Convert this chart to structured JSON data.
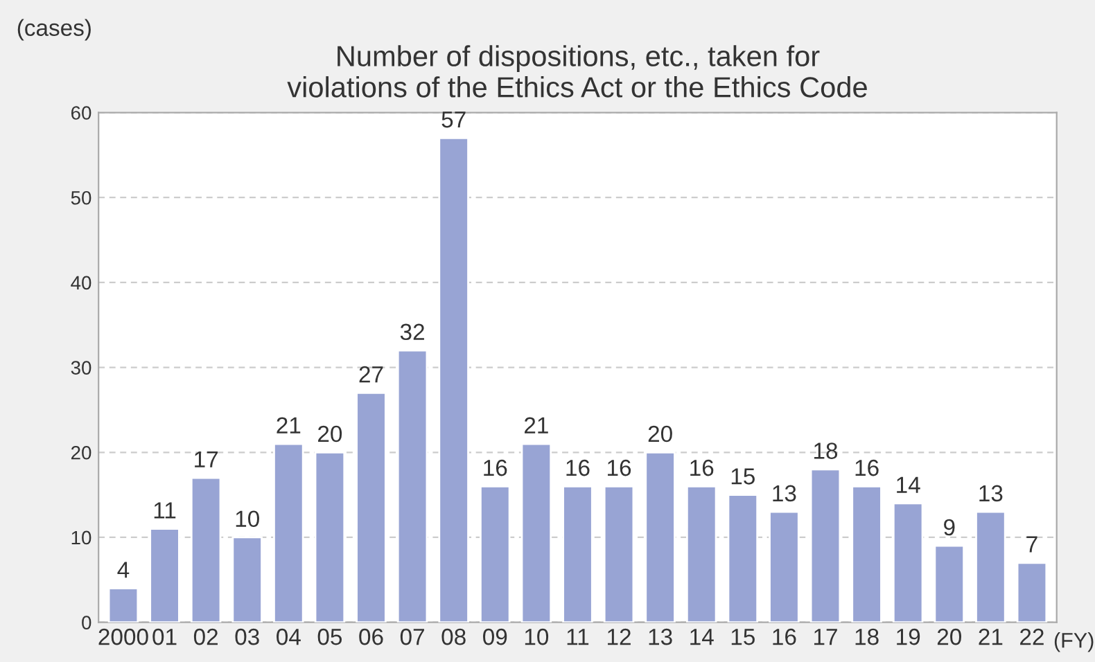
{
  "chart_data": {
    "type": "bar",
    "title": "Number of dispositions, etc., taken for\nviolations of the Ethics Act or the Ethics Code",
    "categories": [
      "2000",
      "01",
      "02",
      "03",
      "04",
      "05",
      "06",
      "07",
      "08",
      "09",
      "10",
      "11",
      "12",
      "13",
      "14",
      "15",
      "16",
      "17",
      "18",
      "19",
      "20",
      "21",
      "22"
    ],
    "values": [
      4,
      11,
      17,
      10,
      21,
      20,
      27,
      32,
      57,
      16,
      21,
      16,
      16,
      20,
      16,
      15,
      13,
      18,
      16,
      14,
      9,
      13,
      7
    ],
    "color": "#98a4d4",
    "ylim": [
      0,
      60
    ],
    "yticks": [
      0,
      10,
      20,
      30,
      40,
      50,
      60
    ],
    "grid": "y",
    "data_labels": true,
    "ylabel": "(cases)",
    "xlabel": "(FY)"
  }
}
